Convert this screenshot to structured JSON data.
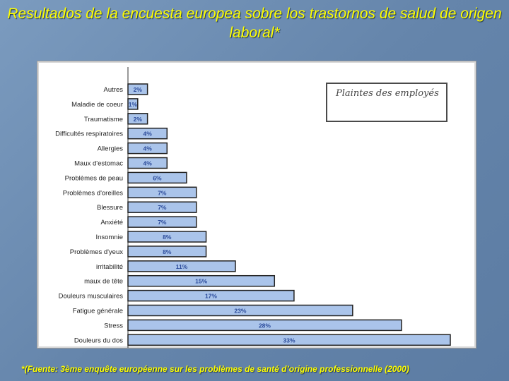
{
  "slide": {
    "title": "Resultados de la encuesta europea sobre los trastornos de salud de origen laboral*",
    "footnote": "*(Fuente: 3ème enquête européenne sur les problèmes de santé d’origine professionnelle (2000)",
    "title_color": "#ffff00"
  },
  "chart_data": {
    "type": "bar",
    "orientation": "horizontal",
    "legend_title": "Plaintes des employés",
    "legend_placement": "top-right",
    "bar_color": "#aac4ea",
    "bar_border_color": "#222222",
    "label_color": "#2a4a9a",
    "categories": [
      "Autres",
      "Maladie de coeur",
      "Traumatisme",
      "Difficultés respiratoires",
      "Allergies",
      "Maux d'estomac",
      "Problèmes de peau",
      "Problèmes d'oreilles",
      "Blessure",
      "Anxiété",
      "Insomnie",
      "Problèmes d'yeux",
      "irritabilité",
      "maux de tête",
      "Douleurs musculaires",
      "Fatigue générale",
      "Stress",
      "Douleurs du dos"
    ],
    "values": [
      2,
      1,
      2,
      4,
      4,
      4,
      6,
      7,
      7,
      7,
      8,
      8,
      11,
      15,
      17,
      23,
      28,
      33
    ],
    "value_labels": [
      "2%",
      "1%",
      "2%",
      "4%",
      "4%",
      "4%",
      "6%",
      "7%",
      "7%",
      "7%",
      "8%",
      "8%",
      "11%",
      "15%",
      "17%",
      "23%",
      "28%",
      "33%"
    ],
    "xlim": [
      0,
      33
    ],
    "grid": false
  }
}
